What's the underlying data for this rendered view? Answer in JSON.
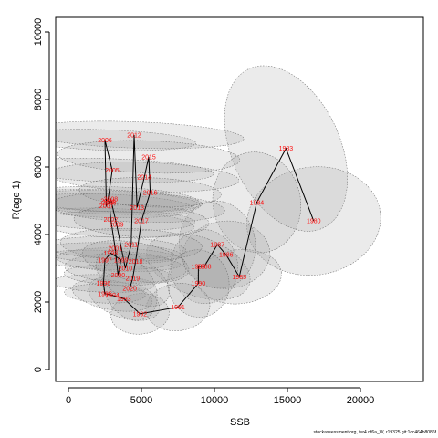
{
  "chart_data": {
    "type": "scatter",
    "xlabel": "SSB",
    "ylabel": "R(age 1)",
    "xlim": [
      0,
      24000
    ],
    "ylim": [
      0,
      10000
    ],
    "x_ticks": [
      "0",
      "5000",
      "10000",
      "15000",
      "20000"
    ],
    "y_ticks": [
      "0",
      "2000",
      "4000",
      "6000",
      "8000",
      "10000"
    ],
    "grid": false,
    "colors": {
      "path": "#000000",
      "labels": "#ff0000",
      "ellipse_fill": "#9a9a9a",
      "ellipse_stroke": "#666666"
    },
    "points": [
      {
        "year": "1980",
        "ssb": 16800,
        "rec": 4400
      },
      {
        "year": "1983",
        "ssb": 14900,
        "rec": 6550
      },
      {
        "year": "1984",
        "ssb": 12900,
        "rec": 4950
      },
      {
        "year": "1985",
        "ssb": 11700,
        "rec": 2750
      },
      {
        "year": "1986",
        "ssb": 10800,
        "rec": 3400
      },
      {
        "year": "1987",
        "ssb": 10200,
        "rec": 3700
      },
      {
        "year": "1988",
        "ssb": 9300,
        "rec": 3050
      },
      {
        "year": "1989",
        "ssb": 8900,
        "rec": 3050
      },
      {
        "year": "1990",
        "ssb": 8900,
        "rec": 2550
      },
      {
        "year": "1991",
        "ssb": 7500,
        "rec": 1850
      },
      {
        "year": "1992",
        "ssb": 4900,
        "rec": 1650
      },
      {
        "year": "1993",
        "ssb": 3800,
        "rec": 2100
      },
      {
        "year": "1994",
        "ssb": 3000,
        "rec": 2200
      },
      {
        "year": "1995",
        "ssb": 2500,
        "rec": 2250
      },
      {
        "year": "1996",
        "ssb": 2400,
        "rec": 2550
      },
      {
        "year": "1997",
        "ssb": 2500,
        "rec": 3250
      },
      {
        "year": "1998",
        "ssb": 2900,
        "rec": 3450
      },
      {
        "year": "1999",
        "ssb": 3600,
        "rec": 3250
      },
      {
        "year": "2000",
        "ssb": 3400,
        "rec": 2800
      },
      {
        "year": "2001",
        "ssb": 3200,
        "rec": 3600
      },
      {
        "year": "2002",
        "ssb": 2900,
        "rec": 4450
      },
      {
        "year": "2003",
        "ssb": 2800,
        "rec": 4950
      },
      {
        "year": "2004",
        "ssb": 2700,
        "rec": 5000
      },
      {
        "year": "2005",
        "ssb": 3000,
        "rec": 5900
      },
      {
        "year": "2006",
        "ssb": 2500,
        "rec": 6800
      },
      {
        "year": "2007",
        "ssb": 2600,
        "rec": 4850
      },
      {
        "year": "2008",
        "ssb": 2900,
        "rec": 5050
      },
      {
        "year": "2009",
        "ssb": 3300,
        "rec": 4300
      },
      {
        "year": "2010",
        "ssb": 3900,
        "rec": 3000
      },
      {
        "year": "2011",
        "ssb": 4300,
        "rec": 3700
      },
      {
        "year": "2012",
        "ssb": 4500,
        "rec": 6950
      },
      {
        "year": "2013",
        "ssb": 4700,
        "rec": 4800
      },
      {
        "year": "2014",
        "ssb": 5200,
        "rec": 5700
      },
      {
        "year": "2015",
        "ssb": 5500,
        "rec": 6300
      },
      {
        "year": "2016",
        "ssb": 5600,
        "rec": 5250
      },
      {
        "year": "2017",
        "ssb": 5000,
        "rec": 4400
      },
      {
        "year": "2018",
        "ssb": 4600,
        "rec": 3200
      },
      {
        "year": "2019",
        "ssb": 4400,
        "rec": 2700
      },
      {
        "year": "2020",
        "ssb": 4200,
        "rec": 2400
      }
    ],
    "ellipses": [
      {
        "cx": 16800,
        "cy": 4400,
        "rx": 4600,
        "ry": 1600,
        "rot": 8
      },
      {
        "cx": 14900,
        "cy": 6550,
        "rx": 3700,
        "ry": 2600,
        "rot": 25
      },
      {
        "cx": 12900,
        "cy": 4950,
        "rx": 3000,
        "ry": 1500,
        "rot": 12
      },
      {
        "cx": 11700,
        "cy": 2750,
        "rx": 2900,
        "ry": 800,
        "rot": 6
      },
      {
        "cx": 10800,
        "cy": 3400,
        "rx": 3000,
        "ry": 1000,
        "rot": 4
      },
      {
        "cx": 10200,
        "cy": 3700,
        "rx": 2600,
        "ry": 1300,
        "rot": 10
      },
      {
        "cx": 9300,
        "cy": 3050,
        "rx": 2300,
        "ry": 1100,
        "rot": 8
      },
      {
        "cx": 8900,
        "cy": 3050,
        "rx": 2000,
        "ry": 1600,
        "rot": 70
      },
      {
        "cx": 8900,
        "cy": 2550,
        "rx": 2100,
        "ry": 1000,
        "rot": 10
      },
      {
        "cx": 7500,
        "cy": 1850,
        "rx": 2200,
        "ry": 700,
        "rot": 8
      },
      {
        "cx": 4900,
        "cy": 1650,
        "rx": 2000,
        "ry": 600,
        "rot": 5
      },
      {
        "cx": 3800,
        "cy": 2100,
        "rx": 1300,
        "ry": 1100,
        "rot": 70
      },
      {
        "cx": 3000,
        "cy": 2200,
        "rx": 1000,
        "ry": 1200,
        "rot": 80
      },
      {
        "cx": 2500,
        "cy": 2250,
        "rx": 650,
        "ry": 1200,
        "rot": 88
      },
      {
        "cx": 2400,
        "cy": 2550,
        "rx": 600,
        "ry": 1500,
        "rot": 88
      },
      {
        "cx": 2500,
        "cy": 3250,
        "rx": 650,
        "ry": 2000,
        "rot": 88
      },
      {
        "cx": 2900,
        "cy": 3450,
        "rx": 700,
        "ry": 2100,
        "rot": 88
      },
      {
        "cx": 3600,
        "cy": 3250,
        "rx": 800,
        "ry": 1900,
        "rot": 88
      },
      {
        "cx": 3400,
        "cy": 2800,
        "rx": 700,
        "ry": 1600,
        "rot": 88
      },
      {
        "cx": 3200,
        "cy": 3600,
        "rx": 750,
        "ry": 2100,
        "rot": 88
      },
      {
        "cx": 2900,
        "cy": 4450,
        "rx": 750,
        "ry": 2500,
        "rot": 88
      },
      {
        "cx": 2800,
        "cy": 4950,
        "rx": 800,
        "ry": 2700,
        "rot": 88
      },
      {
        "cx": 2700,
        "cy": 5000,
        "rx": 750,
        "ry": 2800,
        "rot": 88
      },
      {
        "cx": 3000,
        "cy": 5900,
        "rx": 800,
        "ry": 3000,
        "rot": 88
      },
      {
        "cx": 2500,
        "cy": 6800,
        "rx": 700,
        "ry": 2700,
        "rot": 88
      },
      {
        "cx": 2600,
        "cy": 4850,
        "rx": 800,
        "ry": 2600,
        "rot": 88
      },
      {
        "cx": 2900,
        "cy": 5050,
        "rx": 850,
        "ry": 2600,
        "rot": 88
      },
      {
        "cx": 3300,
        "cy": 4300,
        "rx": 900,
        "ry": 2300,
        "rot": 88
      },
      {
        "cx": 3900,
        "cy": 3000,
        "rx": 1000,
        "ry": 1800,
        "rot": 88
      },
      {
        "cx": 4300,
        "cy": 3700,
        "rx": 1100,
        "ry": 2100,
        "rot": 88
      },
      {
        "cx": 4500,
        "cy": 6950,
        "rx": 900,
        "ry": 3250,
        "rot": 88
      },
      {
        "cx": 4700,
        "cy": 4800,
        "rx": 1000,
        "ry": 2600,
        "rot": 88
      },
      {
        "cx": 5200,
        "cy": 5700,
        "rx": 1000,
        "ry": 2800,
        "rot": 88
      },
      {
        "cx": 5500,
        "cy": 6300,
        "rx": 1100,
        "ry": 2700,
        "rot": 88
      },
      {
        "cx": 5600,
        "cy": 5250,
        "rx": 1000,
        "ry": 2100,
        "rot": 88
      },
      {
        "cx": 5000,
        "cy": 4400,
        "rx": 1100,
        "ry": 2000,
        "rot": 88
      },
      {
        "cx": 4600,
        "cy": 3200,
        "rx": 1300,
        "ry": 1600,
        "rot": 80
      },
      {
        "cx": 4400,
        "cy": 2700,
        "rx": 1500,
        "ry": 1200,
        "rot": 60
      },
      {
        "cx": 4200,
        "cy": 2400,
        "rx": 1700,
        "ry": 1000,
        "rot": 30
      }
    ]
  },
  "footer": "stockassessment.org, tur4.nf6a_W, r19325 git:1cc464b8086f"
}
